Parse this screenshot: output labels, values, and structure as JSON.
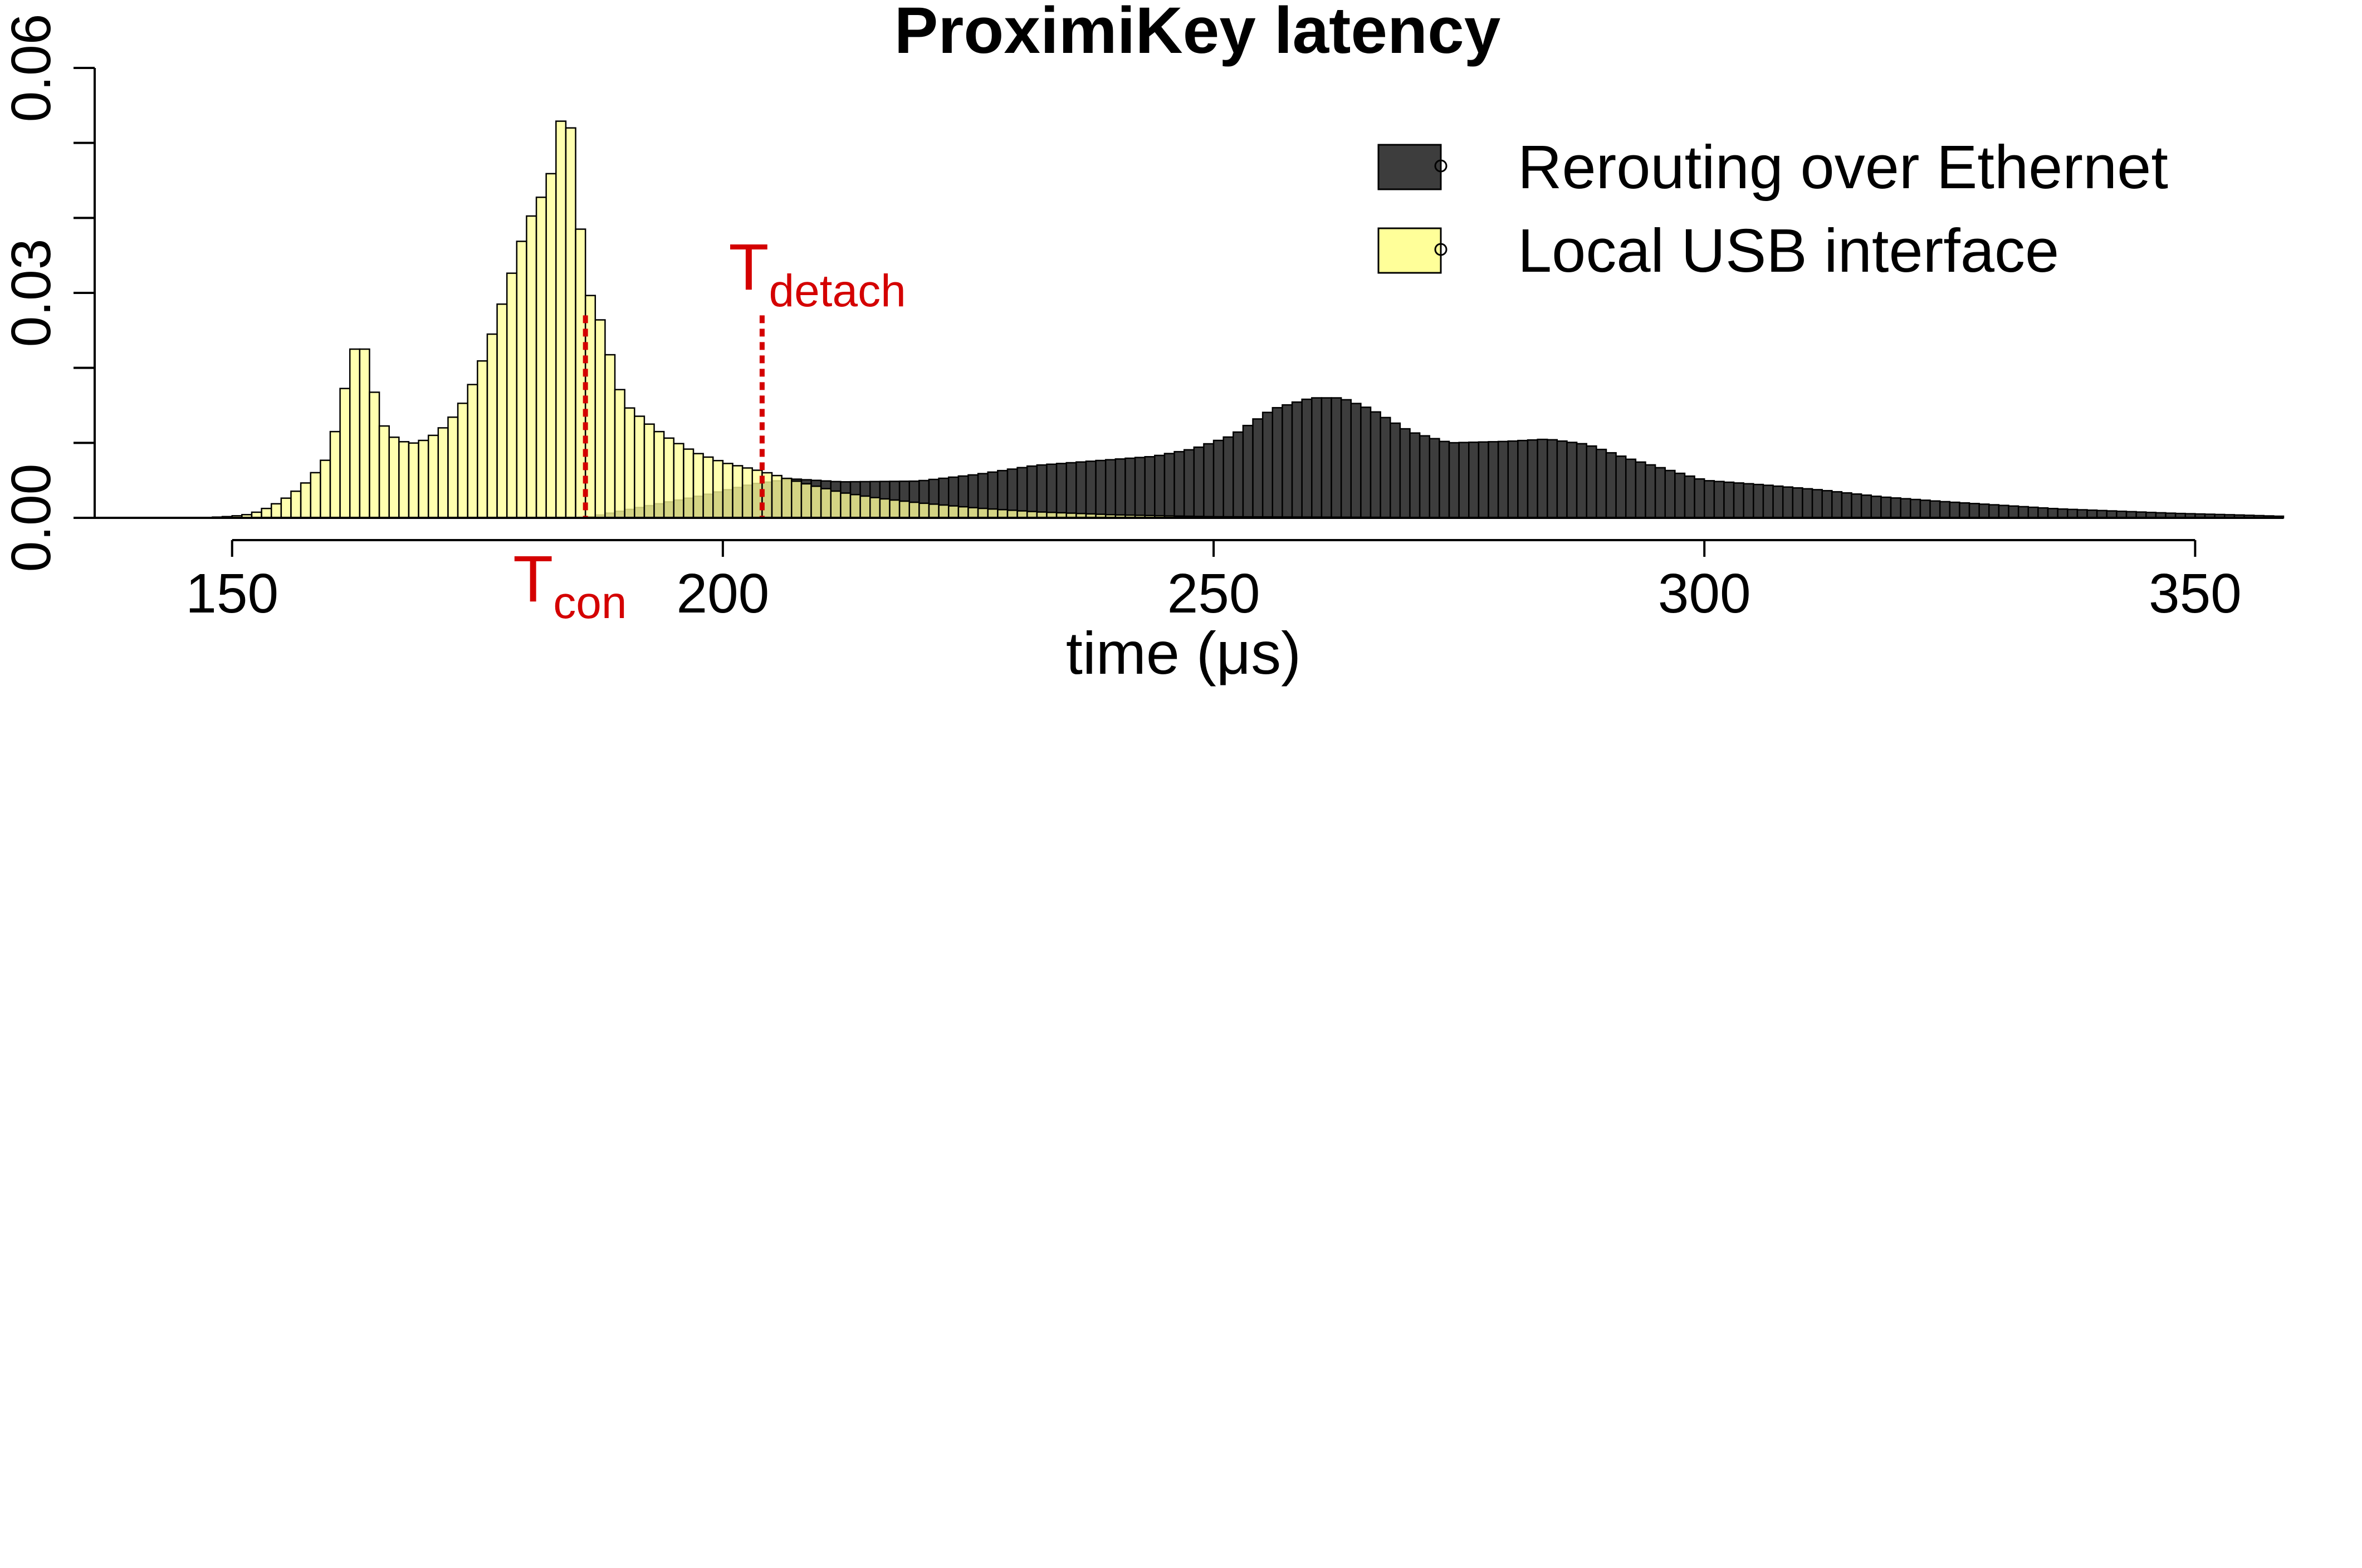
{
  "chart_data": {
    "type": "bar",
    "title": "ProximiKey latency",
    "xlabel": "time (μs)",
    "ylabel": "",
    "xlim": [
      136,
      359
    ],
    "ylim": [
      0,
      0.06
    ],
    "x_ticks": [
      150,
      200,
      250,
      300,
      350
    ],
    "x_tick_labels": [
      "150",
      "200",
      "250",
      "300",
      "350"
    ],
    "y_ticks": [
      0,
      0.01,
      0.02,
      0.03,
      0.04,
      0.05,
      0.06
    ],
    "y_tick_labels": [
      {
        "value": 0,
        "label": "0.00"
      },
      {
        "value": 0.03,
        "label": "0.03"
      },
      {
        "value": 0.06,
        "label": "0.06"
      }
    ],
    "bin_width": 1,
    "legend_position": "top-right",
    "series": [
      {
        "name": "Rerouting over Ethernet",
        "color": "#3d3d3d",
        "knots": [
          [
            186,
            0
          ],
          [
            192,
            0.0015
          ],
          [
            198,
            0.003
          ],
          [
            203,
            0.0045
          ],
          [
            207,
            0.0052
          ],
          [
            212,
            0.0048
          ],
          [
            220,
            0.0049
          ],
          [
            226,
            0.0058
          ],
          [
            232,
            0.007
          ],
          [
            238,
            0.0076
          ],
          [
            244,
            0.0082
          ],
          [
            248,
            0.0092
          ],
          [
            252,
            0.011
          ],
          [
            256,
            0.0145
          ],
          [
            260,
            0.016
          ],
          [
            263,
            0.016
          ],
          [
            266,
            0.0145
          ],
          [
            270,
            0.0115
          ],
          [
            274,
            0.01
          ],
          [
            280,
            0.0102
          ],
          [
            284,
            0.0105
          ],
          [
            288,
            0.0098
          ],
          [
            292,
            0.008
          ],
          [
            296,
            0.0065
          ],
          [
            300,
            0.005
          ],
          [
            306,
            0.0044
          ],
          [
            312,
            0.0037
          ],
          [
            318,
            0.0028
          ],
          [
            324,
            0.0022
          ],
          [
            330,
            0.0017
          ],
          [
            336,
            0.0012
          ],
          [
            342,
            0.0009
          ],
          [
            348,
            0.0006
          ],
          [
            354,
            0.0004
          ],
          [
            359,
            0.0002
          ]
        ]
      },
      {
        "name": "Local USB interface",
        "color": "#ffff99",
        "knots": [
          [
            147,
            0
          ],
          [
            150,
            0.0002
          ],
          [
            152,
            0.0005
          ],
          [
            154,
            0.0015
          ],
          [
            156,
            0.003
          ],
          [
            158,
            0.0052
          ],
          [
            160,
            0.0085
          ],
          [
            161,
            0.0145
          ],
          [
            162,
            0.02
          ],
          [
            163,
            0.025
          ],
          [
            164,
            0.02
          ],
          [
            165,
            0.0135
          ],
          [
            166,
            0.011
          ],
          [
            167,
            0.0105
          ],
          [
            168,
            0.0098
          ],
          [
            170,
            0.0105
          ],
          [
            172,
            0.0125
          ],
          [
            174,
            0.0162
          ],
          [
            176,
            0.0225
          ],
          [
            178,
            0.0305
          ],
          [
            180,
            0.039
          ],
          [
            182,
            0.044
          ],
          [
            183,
            0.0478
          ],
          [
            184,
            0.058
          ],
          [
            185,
            0.046
          ],
          [
            186,
            0.031
          ],
          [
            187,
            0.0283
          ],
          [
            188,
            0.0245
          ],
          [
            189,
            0.019
          ],
          [
            190,
            0.0152
          ],
          [
            192,
            0.013
          ],
          [
            194,
            0.011
          ],
          [
            197,
            0.0088
          ],
          [
            200,
            0.0074
          ],
          [
            204,
            0.0062
          ],
          [
            208,
            0.0047
          ],
          [
            212,
            0.0034
          ],
          [
            216,
            0.0026
          ],
          [
            220,
            0.002
          ],
          [
            226,
            0.0013
          ],
          [
            232,
            0.0008
          ],
          [
            240,
            0.0004
          ],
          [
            250,
            0.00015
          ],
          [
            260,
            0.0001
          ],
          [
            275,
            3e-05
          ],
          [
            290,
            0
          ]
        ]
      }
    ],
    "annotations": [
      {
        "label": "T",
        "subscript": "con",
        "x": 186,
        "y_top": 0.027,
        "color": "#d40000",
        "style": "dotted"
      },
      {
        "label": "T",
        "subscript": "detach",
        "x": 204,
        "y_top": 0.027,
        "color": "#d40000",
        "style": "dotted"
      }
    ]
  }
}
